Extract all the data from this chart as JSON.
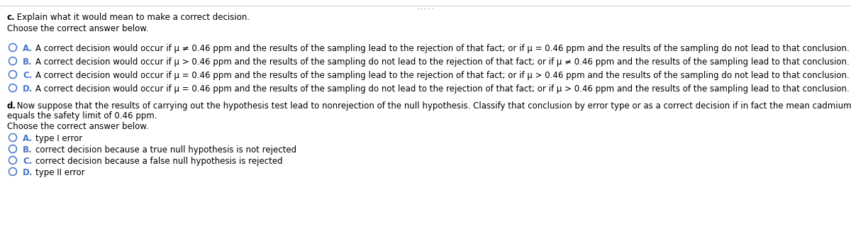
{
  "bg_color": "#ffffff",
  "dots_text": ".....",
  "section_c_title_bold": "c.",
  "section_c_title_rest": " Explain what it would mean to make a correct decision.",
  "choose_correct_1": "Choose the correct answer below.",
  "options_c": [
    {
      "letter": "A.",
      "text": "A correct decision would occur if μ ≠ 0.46 ppm and the results of the sampling lead to the rejection of that fact; or if μ = 0.46 ppm and the results of the sampling do not lead to that conclusion."
    },
    {
      "letter": "B.",
      "text": "A correct decision would occur if μ > 0.46 ppm and the results of the sampling do not lead to the rejection of that fact; or if μ ≠ 0.46 ppm and the results of the sampling lead to that conclusion."
    },
    {
      "letter": "C.",
      "text": "A correct decision would occur if μ = 0.46 ppm and the results of the sampling lead to the rejection of that fact; or if μ > 0.46 ppm and the results of the sampling do not lead to that conclusion."
    },
    {
      "letter": "D.",
      "text": "A correct decision would occur if μ = 0.46 ppm and the results of the sampling do not lead to the rejection of that fact; or if μ > 0.46 ppm and the results of the sampling lead to that conclusion."
    }
  ],
  "section_d_title_bold": "d.",
  "section_d_title_rest": " Now suppose that the results of carrying out the hypothesis test lead to nonrejection of the null hypothesis. Classify that conclusion by error type or as a correct decision if in fact the mean cadmium level in that type of mushrooms",
  "section_d_title2": "equals the safety limit of 0.46 ppm.",
  "choose_correct_2": "Choose the correct answer below.",
  "options_d": [
    {
      "letter": "A.",
      "text": "type I error"
    },
    {
      "letter": "B.",
      "text": "correct decision because a true null hypothesis is not rejected"
    },
    {
      "letter": "C.",
      "text": "correct decision because a false null hypothesis is rejected"
    },
    {
      "letter": "D.",
      "text": "type II error"
    }
  ],
  "circle_color": "#4472c4",
  "text_color": "#000000",
  "letter_color": "#4472c4",
  "font_size": 8.5,
  "font_size_small": 8.0,
  "line_color": "#cccccc"
}
